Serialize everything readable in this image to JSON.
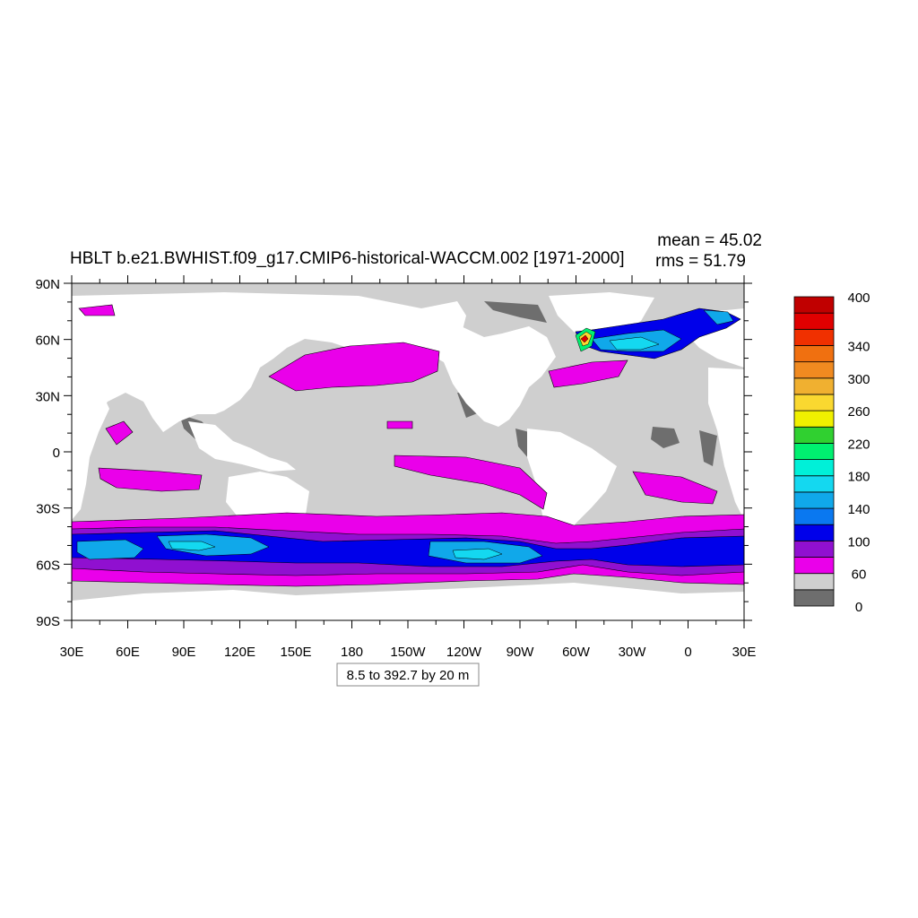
{
  "title": "HBLT b.e21.BWHIST.f09_g17.CMIP6-historical-WACCM.002 [1971-2000]",
  "stats": {
    "mean": "mean = 45.02",
    "rms": "rms = 51.79"
  },
  "info_box": "8.5 to 392.7 by 20 m",
  "lat_labels": [
    "90N",
    "60N",
    "30N",
    "0",
    "30S",
    "60S",
    "90S"
  ],
  "lon_labels": [
    "30E",
    "60E",
    "90E",
    "120E",
    "150E",
    "180",
    "150W",
    "120W",
    "90W",
    "60W",
    "30W",
    "0",
    "30E"
  ],
  "colorbar": {
    "colors": [
      "#6e6e6e",
      "#cfcfcf",
      "#ea00ea",
      "#9010d0",
      "#0000ea",
      "#0a78f0",
      "#10a8ea",
      "#14d8f0",
      "#00f0d8",
      "#00f070",
      "#30d030",
      "#f0f000",
      "#fad830",
      "#f0b030",
      "#f08a20",
      "#f07010",
      "#f03000",
      "#e00000",
      "#c00000"
    ],
    "labels": [
      "0",
      "60",
      "100",
      "140",
      "180",
      "220",
      "260",
      "300",
      "340",
      "400"
    ]
  },
  "colors": {
    "land": "#ffffff",
    "ocean_low": "#cfcfcf",
    "ocean_min": "#6e6e6e"
  }
}
